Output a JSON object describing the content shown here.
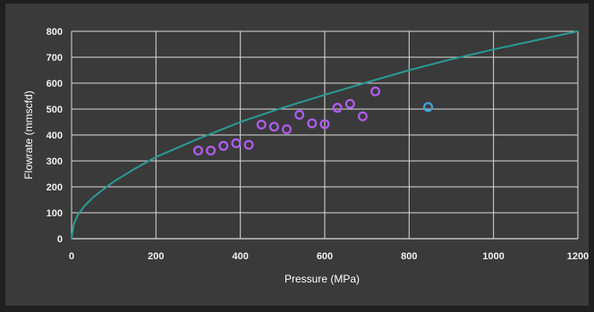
{
  "chart_data": {
    "type": "scatter",
    "xlabel": "Pressure (MPa)",
    "ylabel": "Flowrate (mmscfd)",
    "xlim": [
      0,
      1200
    ],
    "ylim": [
      0,
      800
    ],
    "x_ticks": [
      0,
      200,
      400,
      600,
      800,
      1000,
      1200
    ],
    "y_ticks": [
      0,
      100,
      200,
      300,
      400,
      500,
      600,
      700,
      800
    ],
    "grid": true,
    "colors": {
      "background": "#3a3a3a",
      "grid": "#d9d9d9",
      "curve": "#2a9a93",
      "purple_points": "#b15cf0",
      "blue_points": "#3ea3da",
      "text": "#f0f0f0"
    },
    "series": [
      {
        "type": "line",
        "points": [
          {
            "x": 0,
            "y": 0
          },
          {
            "x": 5,
            "y": 55
          },
          {
            "x": 15,
            "y": 92
          },
          {
            "x": 30,
            "y": 125
          },
          {
            "x": 50,
            "y": 158
          },
          {
            "x": 75,
            "y": 190
          },
          {
            "x": 100,
            "y": 220
          },
          {
            "x": 150,
            "y": 270
          },
          {
            "x": 200,
            "y": 315
          },
          {
            "x": 300,
            "y": 385
          },
          {
            "x": 400,
            "y": 450
          },
          {
            "x": 500,
            "y": 505
          },
          {
            "x": 600,
            "y": 555
          },
          {
            "x": 700,
            "y": 603
          },
          {
            "x": 800,
            "y": 650
          },
          {
            "x": 900,
            "y": 692
          },
          {
            "x": 1000,
            "y": 730
          },
          {
            "x": 1100,
            "y": 765
          },
          {
            "x": 1200,
            "y": 800
          }
        ]
      },
      {
        "type": "scatter",
        "points": [
          {
            "x": 300,
            "y": 340
          },
          {
            "x": 330,
            "y": 340
          },
          {
            "x": 360,
            "y": 358
          },
          {
            "x": 390,
            "y": 368
          },
          {
            "x": 420,
            "y": 362
          },
          {
            "x": 450,
            "y": 440
          },
          {
            "x": 480,
            "y": 432
          },
          {
            "x": 510,
            "y": 422
          },
          {
            "x": 540,
            "y": 478
          },
          {
            "x": 570,
            "y": 445
          },
          {
            "x": 600,
            "y": 442
          },
          {
            "x": 630,
            "y": 505
          },
          {
            "x": 660,
            "y": 520
          },
          {
            "x": 690,
            "y": 472
          },
          {
            "x": 720,
            "y": 568
          }
        ]
      },
      {
        "type": "scatter",
        "points": [
          {
            "x": 845,
            "y": 508
          }
        ]
      }
    ]
  }
}
